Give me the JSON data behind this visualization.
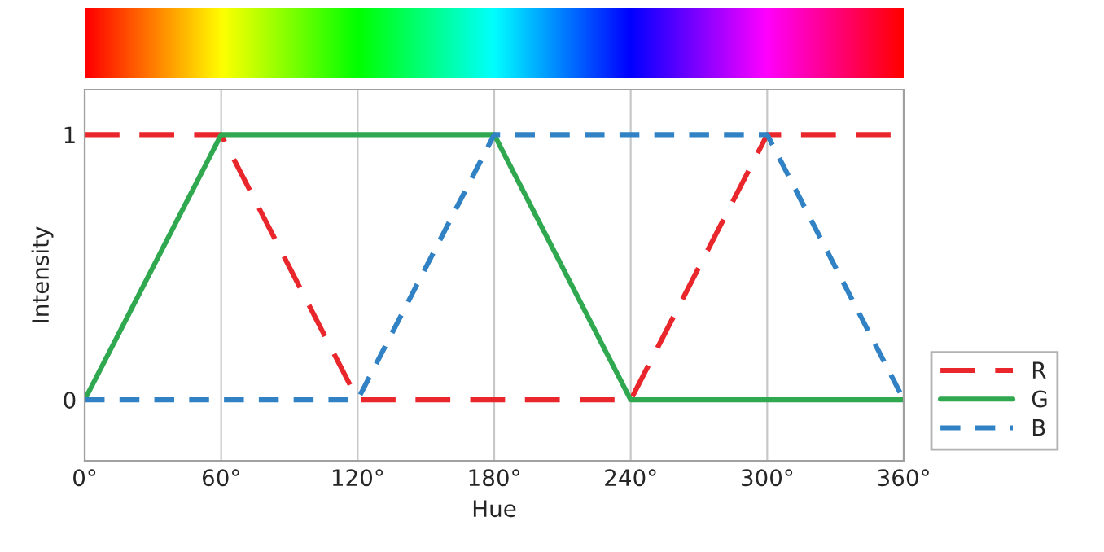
{
  "chart_data": {
    "type": "line",
    "xlabel": "Hue",
    "ylabel": "Intensity",
    "x": [
      0,
      60,
      120,
      180,
      240,
      300,
      360
    ],
    "series": [
      {
        "name": "R",
        "color": "#e8262b",
        "line_style": "dashed",
        "values": [
          1,
          1,
          0,
          0,
          0,
          1,
          1
        ]
      },
      {
        "name": "G",
        "color": "#2fa84f",
        "line_style": "solid",
        "values": [
          0,
          1,
          1,
          1,
          0,
          0,
          0
        ]
      },
      {
        "name": "B",
        "color": "#3182c4",
        "line_style": "dotted",
        "values": [
          0,
          0,
          0,
          1,
          1,
          1,
          0
        ]
      }
    ],
    "xlim": [
      0,
      360
    ],
    "xticks": [
      {
        "value": 0,
        "label": "0°"
      },
      {
        "value": 60,
        "label": "60°"
      },
      {
        "value": 120,
        "label": "120°"
      },
      {
        "value": 180,
        "label": "180°"
      },
      {
        "value": 240,
        "label": "240°"
      },
      {
        "value": 300,
        "label": "300°"
      },
      {
        "value": 360,
        "label": "360°"
      }
    ],
    "ylim": [
      -0.23,
      1.17
    ],
    "yticks": [
      0,
      1
    ],
    "grid": "x",
    "legend": "bottom right",
    "marker": "none"
  }
}
